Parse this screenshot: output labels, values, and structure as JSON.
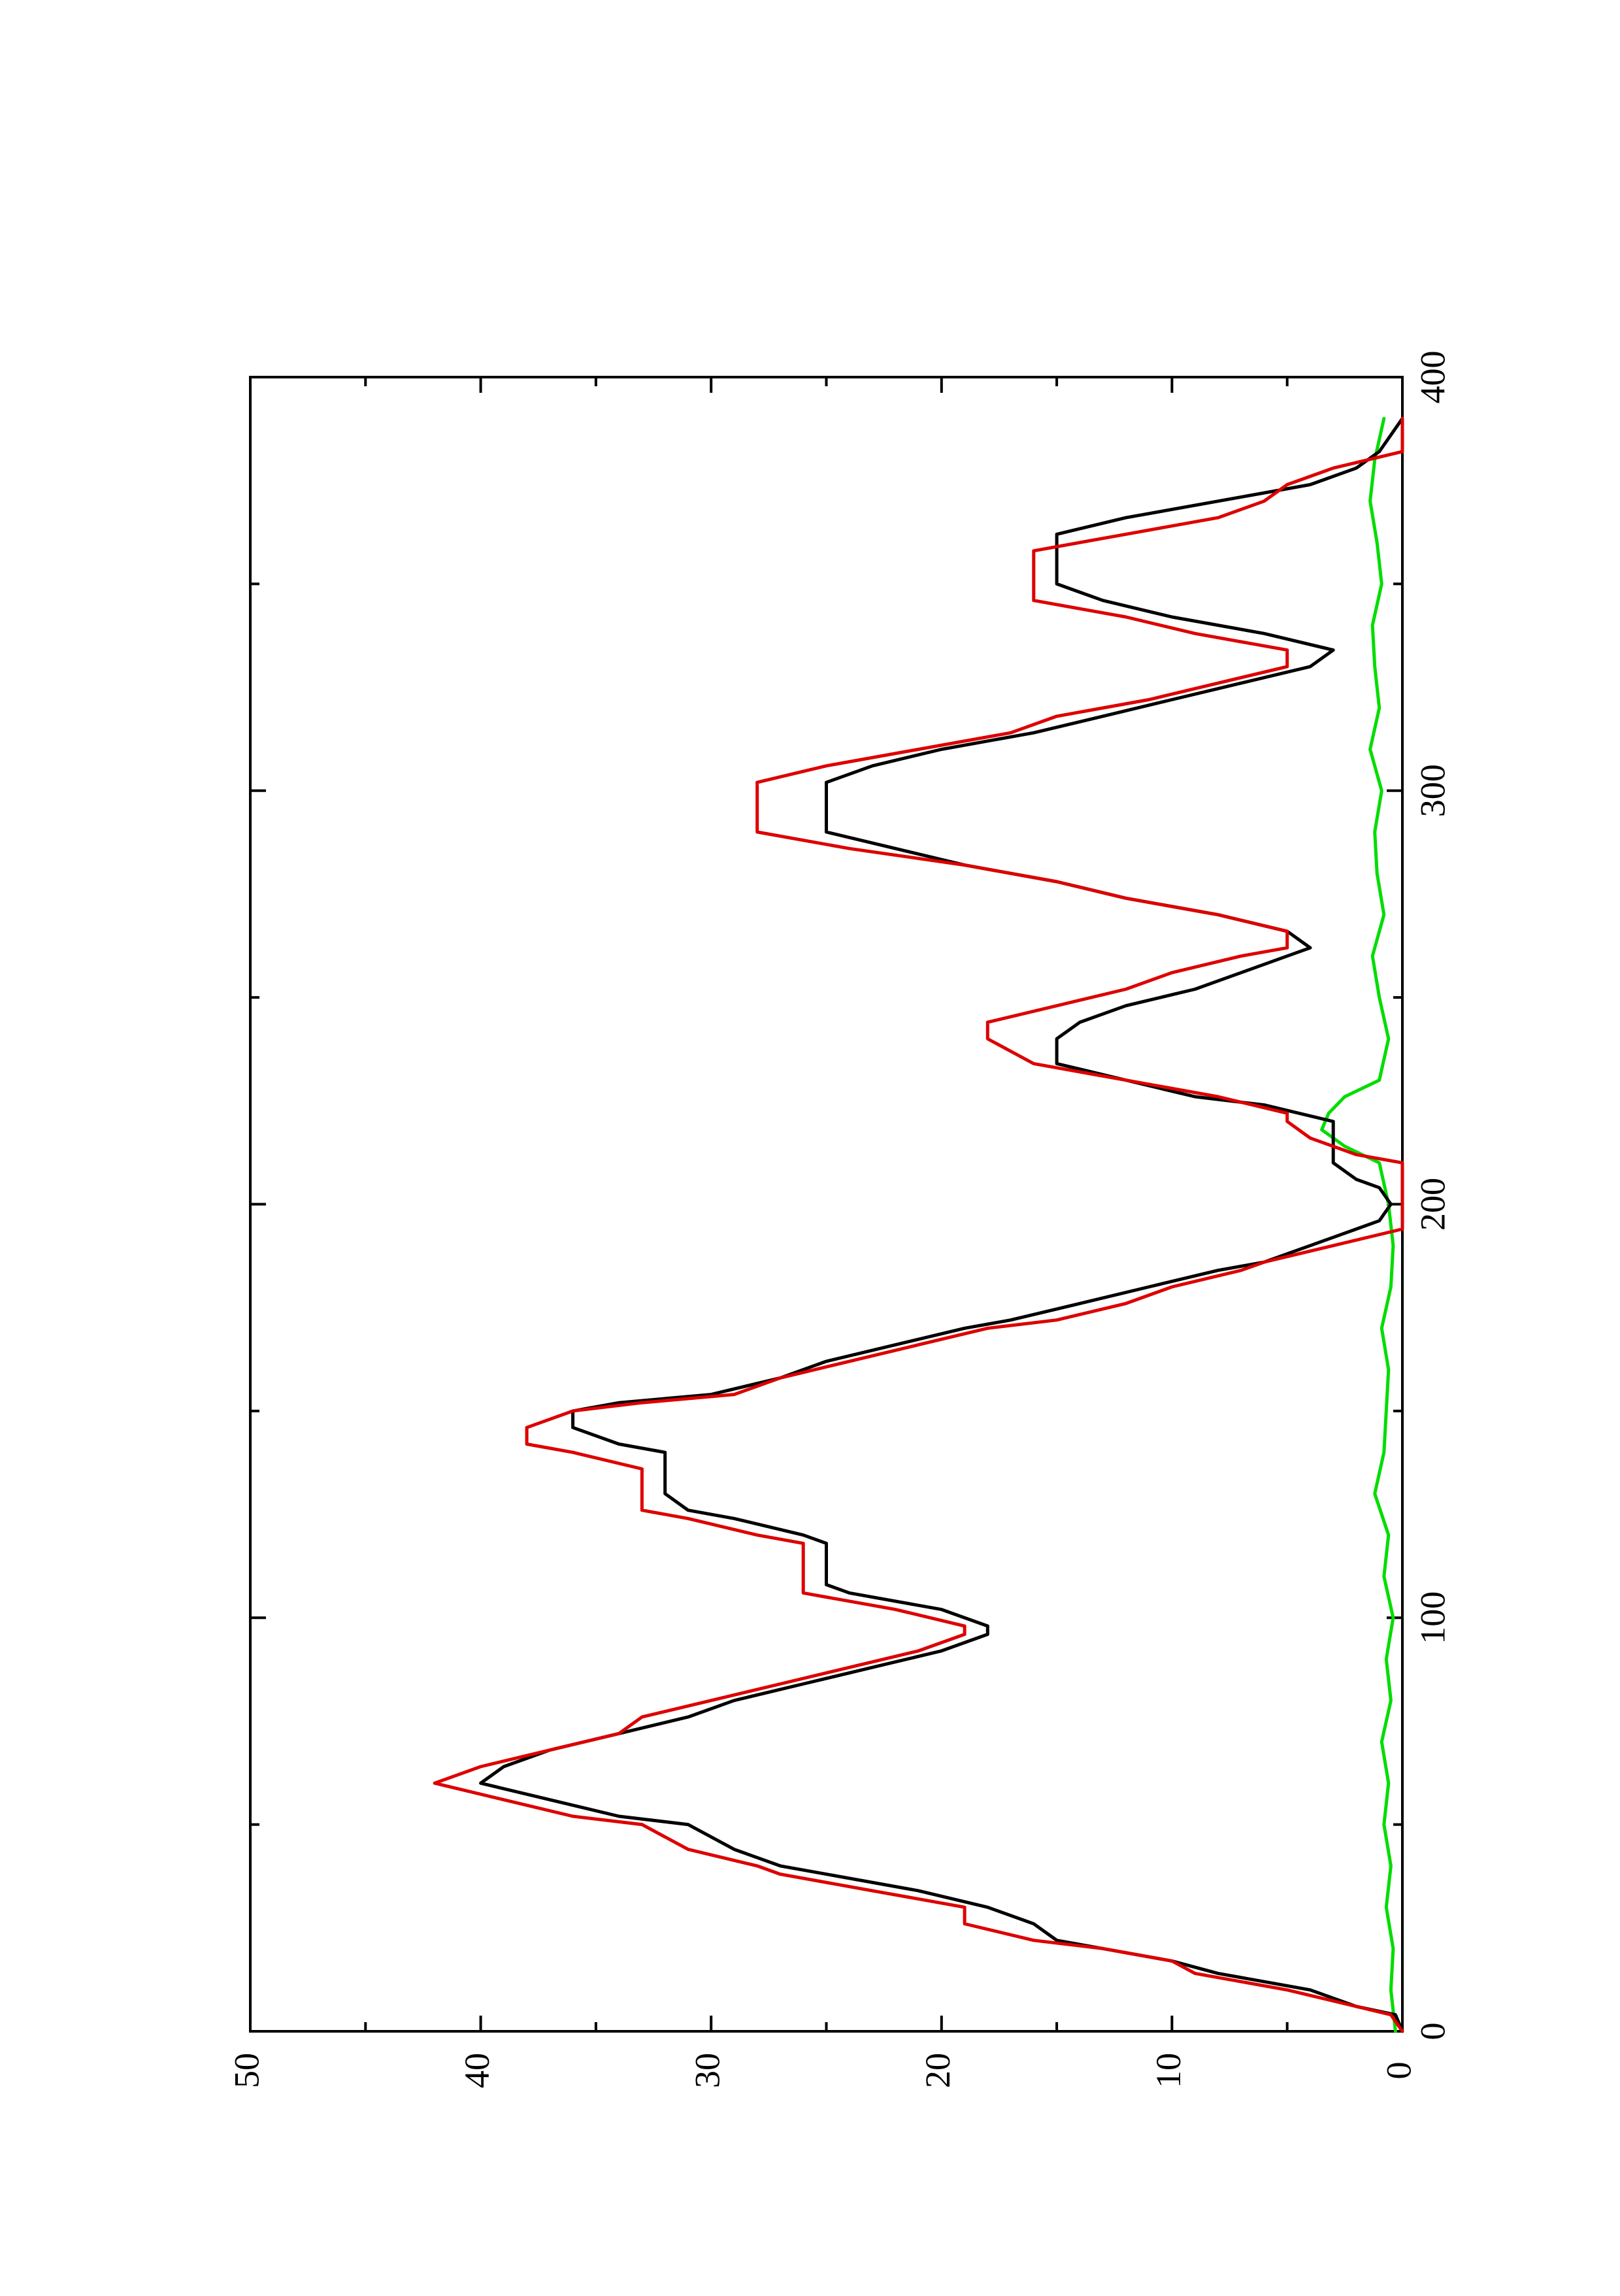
{
  "chart_data": {
    "type": "line",
    "orientation": "rotated-90-ccw",
    "title": "",
    "xlabel": "",
    "ylabel": "",
    "xlim": [
      0,
      400
    ],
    "ylim": [
      0,
      50
    ],
    "xticks": [
      0,
      100,
      200,
      300,
      400
    ],
    "yticks": [
      0,
      10,
      20,
      30,
      40,
      50
    ],
    "xtick_labels": [
      "0",
      "100",
      "200",
      "300",
      "400"
    ],
    "ytick_labels": [
      "0",
      "10",
      "20",
      "30",
      "40",
      "50"
    ],
    "grid": false,
    "legend": "none",
    "colors": {
      "red_series": "#dd0000",
      "black_series": "#000000",
      "green_series": "#00dd00",
      "axes": "#000000",
      "background": "#ffffff"
    },
    "series": [
      {
        "color": "red",
        "x": [
          0,
          4,
          6,
          10,
          14,
          17,
          20,
          22,
          26,
          30,
          34,
          38,
          40,
          44,
          50,
          52,
          56,
          60,
          64,
          68,
          72,
          76,
          80,
          84,
          88,
          92,
          96,
          98,
          102,
          106,
          108,
          114,
          118,
          120,
          124,
          126,
          130,
          136,
          140,
          142,
          146,
          150,
          152,
          154,
          158,
          162,
          166,
          170,
          172,
          176,
          180,
          184,
          186,
          190,
          194,
          196,
          200,
          210,
          212,
          216,
          220,
          222,
          226,
          230,
          234,
          240,
          244,
          248,
          252,
          256,
          260,
          262,
          266,
          270,
          274,
          278,
          282,
          286,
          290,
          294,
          298,
          302,
          306,
          310,
          314,
          318,
          322,
          326,
          330,
          334,
          338,
          342,
          346,
          350,
          354,
          358,
          362,
          366,
          370,
          374,
          378,
          382,
          386,
          390
        ],
        "y": [
          0,
          0.5,
          2,
          5,
          9,
          10,
          13,
          16,
          19,
          19,
          23,
          27,
          28,
          31,
          33,
          36,
          39,
          42,
          40,
          37,
          34,
          33,
          30,
          27,
          24,
          21,
          19,
          19,
          22,
          26,
          26,
          26,
          26,
          28,
          31,
          33,
          33,
          33,
          36,
          38,
          38,
          36,
          33,
          29,
          27,
          24,
          21,
          18,
          15,
          12,
          10,
          7,
          6,
          3,
          0,
          0,
          0,
          0,
          2,
          4,
          5,
          5,
          8,
          12,
          16,
          18,
          18,
          15,
          12,
          10,
          7,
          5,
          5,
          8,
          12,
          15,
          19,
          24,
          28,
          28,
          28,
          28,
          25,
          21,
          17,
          15,
          11,
          8,
          5,
          5,
          9,
          12,
          16,
          16,
          16,
          16,
          12,
          8,
          6,
          5,
          3,
          0,
          0,
          0
        ]
      },
      {
        "color": "black",
        "x": [
          0,
          4,
          6,
          10,
          14,
          17,
          20,
          22,
          26,
          30,
          34,
          38,
          40,
          44,
          50,
          52,
          56,
          60,
          64,
          68,
          72,
          76,
          80,
          84,
          88,
          92,
          96,
          98,
          102,
          106,
          108,
          114,
          118,
          120,
          124,
          126,
          130,
          136,
          140,
          142,
          146,
          150,
          152,
          154,
          158,
          162,
          166,
          170,
          172,
          176,
          180,
          184,
          186,
          190,
          194,
          196,
          200,
          204,
          206,
          210,
          214,
          218,
          220,
          224,
          226,
          230,
          234,
          240,
          244,
          248,
          252,
          256,
          260,
          262,
          266,
          270,
          274,
          278,
          282,
          286,
          290,
          294,
          298,
          302,
          306,
          310,
          314,
          318,
          322,
          326,
          330,
          334,
          338,
          342,
          346,
          350,
          354,
          358,
          362,
          366,
          370,
          374,
          378,
          382,
          386,
          390
        ],
        "y": [
          0,
          0.3,
          2,
          4,
          8,
          10,
          13,
          15,
          16,
          18,
          21,
          25,
          27,
          29,
          31,
          34,
          37,
          40,
          39,
          37,
          34,
          31,
          29,
          26,
          23,
          20,
          18,
          18,
          20,
          24,
          25,
          25,
          25,
          26,
          29,
          31,
          32,
          32,
          32,
          34,
          36,
          36,
          34,
          30,
          27,
          25,
          22,
          19,
          17,
          14,
          11,
          8,
          6,
          4,
          2,
          1,
          0.5,
          1,
          2,
          3,
          3,
          3,
          3,
          6,
          9,
          12,
          15,
          15,
          14,
          12,
          9,
          7,
          5,
          4,
          5,
          8,
          12,
          15,
          19,
          22,
          25,
          25,
          25,
          25,
          23,
          20,
          16,
          13,
          10,
          7,
          4,
          3,
          6,
          10,
          13,
          15,
          15,
          15,
          15,
          12,
          8,
          4,
          2,
          1,
          0.5,
          0
        ]
      },
      {
        "color": "green",
        "x": [
          0,
          10,
          20,
          30,
          40,
          50,
          60,
          70,
          80,
          90,
          100,
          110,
          120,
          130,
          140,
          150,
          160,
          170,
          180,
          190,
          200,
          210,
          214,
          218,
          222,
          226,
          230,
          240,
          250,
          260,
          270,
          280,
          290,
          300,
          310,
          320,
          330,
          340,
          350,
          360,
          370,
          380,
          390
        ],
        "y": [
          0.3,
          0.5,
          0.4,
          0.7,
          0.5,
          0.8,
          0.6,
          0.9,
          0.5,
          0.7,
          0.4,
          0.8,
          0.6,
          1.2,
          0.8,
          0.7,
          0.6,
          0.9,
          0.5,
          0.4,
          0.6,
          1.0,
          2.5,
          3.5,
          3.2,
          2.5,
          1.0,
          0.6,
          1.0,
          1.3,
          0.8,
          1.1,
          1.2,
          0.9,
          1.4,
          1.0,
          1.2,
          1.3,
          0.9,
          1.1,
          1.4,
          1.2,
          0.8
        ]
      }
    ]
  }
}
